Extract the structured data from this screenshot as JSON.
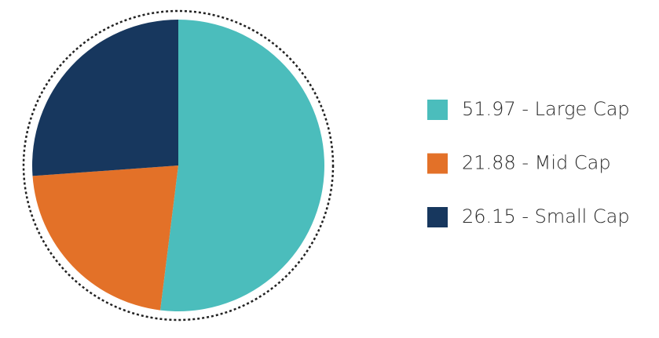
{
  "chart_data": {
    "type": "pie",
    "categories": [
      "51.97 - Large Cap",
      "21.88 - Mid Cap",
      "26.15 - Small Cap"
    ],
    "values": [
      51.97,
      21.88,
      26.15
    ],
    "colors": [
      "#4bbdbc",
      "#e37128",
      "#17375e"
    ]
  }
}
